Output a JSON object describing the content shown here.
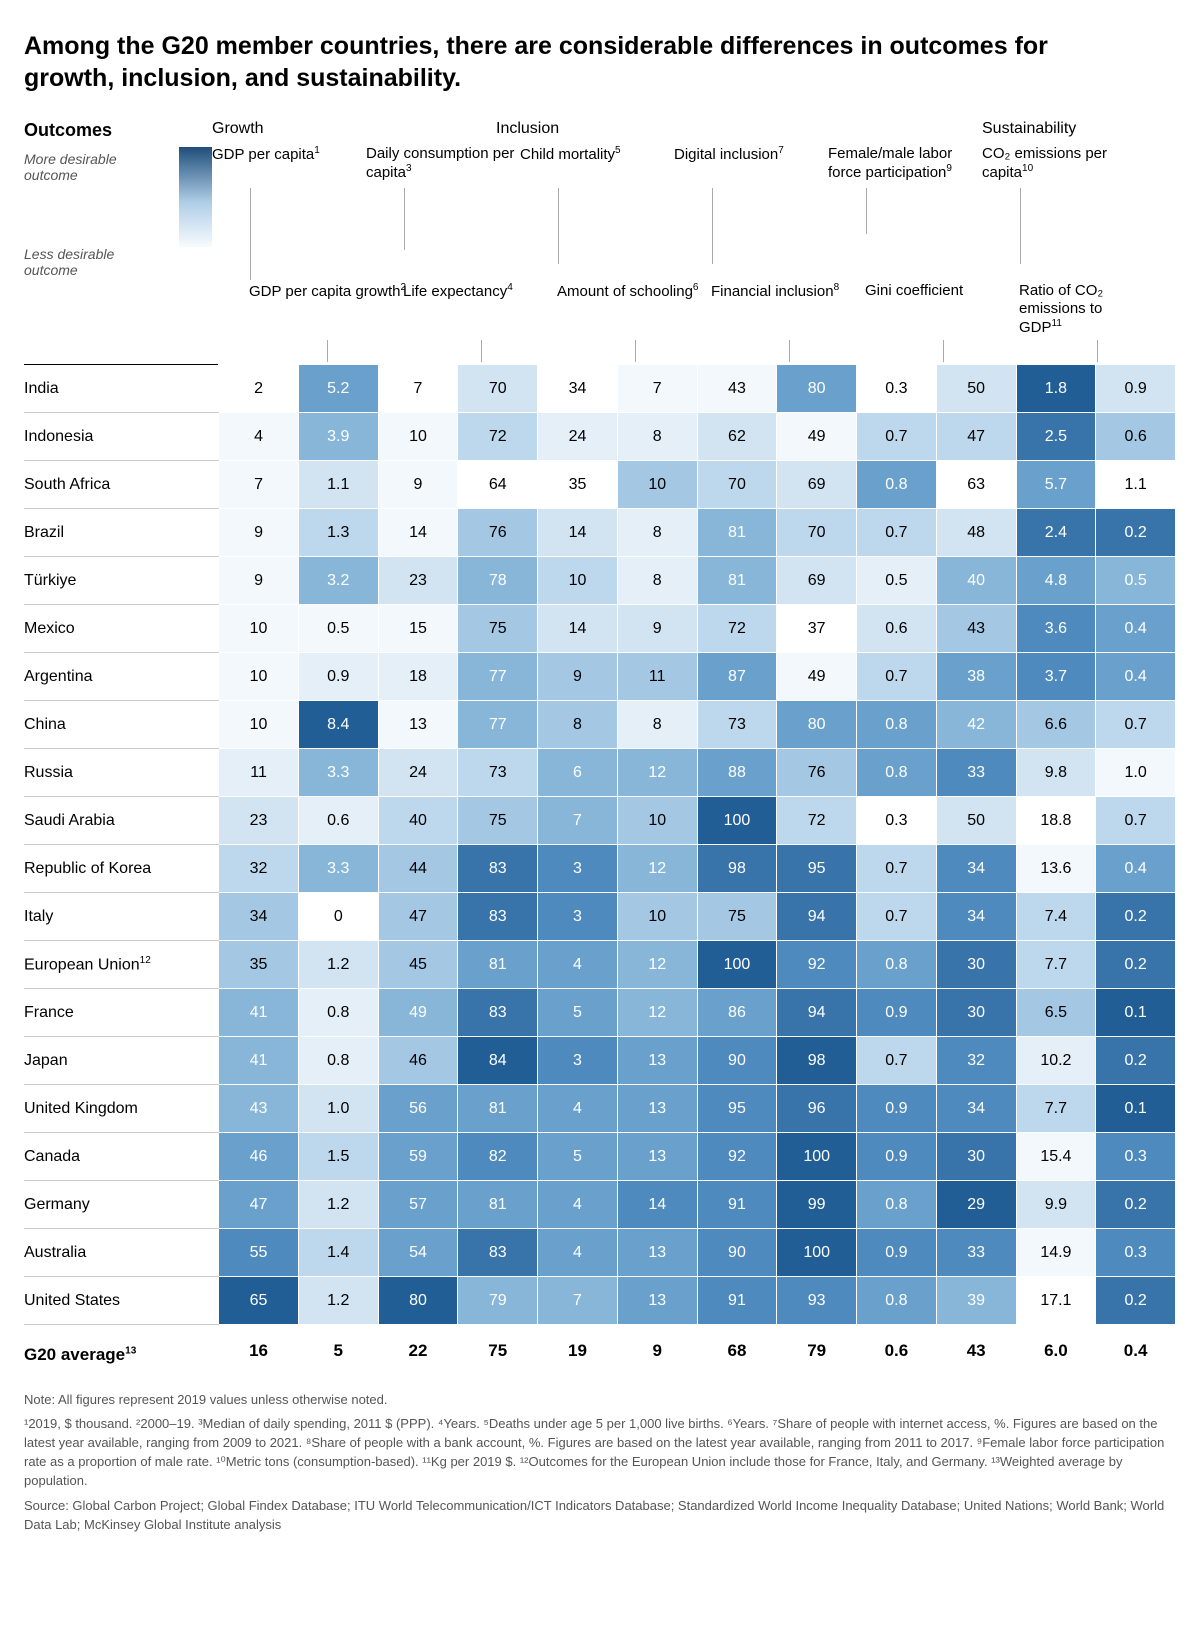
{
  "title": "Among the G20 member countries, there are considerable differences in outcomes for growth, inclusion, and sustainability.",
  "legend": {
    "top": "More desirable outcome",
    "bottom": "Less desirable outcome",
    "title": "Outcomes"
  },
  "groups": [
    "Growth",
    "Inclusion",
    "Sustainability"
  ],
  "metricsTop": [
    {
      "t": "GDP per capita",
      "s": "1"
    },
    {
      "t": "Daily consumption per capita",
      "s": "3"
    },
    {
      "t": "Child mortality",
      "s": "5"
    },
    {
      "t": "Digital inclusion",
      "s": "7"
    },
    {
      "t": "Female/male labor force participation",
      "s": "9"
    },
    {
      "t": "CO₂ emissions per capita",
      "s": "10"
    }
  ],
  "metricsBottom": [
    {
      "t": "GDP per capita growth",
      "s": "2"
    },
    {
      "t": "Life expectancy",
      "s": "4"
    },
    {
      "t": "Amount of schooling",
      "s": "6"
    },
    {
      "t": "Financial inclusion",
      "s": "8"
    },
    {
      "t": "Gini coefficient",
      "s": ""
    },
    {
      "t": "Ratio of CO₂ emissions to GDP",
      "s": "11"
    }
  ],
  "rows": [
    {
      "c": "India",
      "v": [
        "2",
        "5.2",
        "7",
        "70",
        "34",
        "7",
        "43",
        "80",
        "0.3",
        "50",
        "1.8",
        "0.9"
      ],
      "s": [
        0,
        7,
        0,
        3,
        0,
        1,
        1,
        7,
        0,
        3,
        10,
        3
      ]
    },
    {
      "c": "Indonesia",
      "v": [
        "4",
        "3.9",
        "10",
        "72",
        "24",
        "8",
        "62",
        "49",
        "0.7",
        "47",
        "2.5",
        "0.6"
      ],
      "s": [
        1,
        6,
        1,
        4,
        2,
        2,
        3,
        1,
        4,
        4,
        9,
        5
      ]
    },
    {
      "c": "South Africa",
      "v": [
        "7",
        "1.1",
        "9",
        "64",
        "35",
        "10",
        "70",
        "69",
        "0.8",
        "63",
        "5.7",
        "1.1"
      ],
      "s": [
        1,
        3,
        1,
        0,
        0,
        5,
        4,
        3,
        7,
        0,
        7,
        0
      ]
    },
    {
      "c": "Brazil",
      "v": [
        "9",
        "1.3",
        "14",
        "76",
        "14",
        "8",
        "81",
        "70",
        "0.7",
        "48",
        "2.4",
        "0.2"
      ],
      "s": [
        1,
        4,
        1,
        5,
        3,
        2,
        6,
        4,
        4,
        3,
        9,
        9
      ]
    },
    {
      "c": "Türkiye",
      "v": [
        "9",
        "3.2",
        "23",
        "78",
        "10",
        "8",
        "81",
        "69",
        "0.5",
        "40",
        "4.8",
        "0.5"
      ],
      "s": [
        1,
        6,
        3,
        6,
        4,
        2,
        6,
        3,
        2,
        6,
        7,
        6
      ]
    },
    {
      "c": "Mexico",
      "v": [
        "10",
        "0.5",
        "15",
        "75",
        "14",
        "9",
        "72",
        "37",
        "0.6",
        "43",
        "3.6",
        "0.4"
      ],
      "s": [
        1,
        1,
        1,
        5,
        3,
        3,
        4,
        0,
        3,
        5,
        8,
        7
      ]
    },
    {
      "c": "Argentina",
      "v": [
        "10",
        "0.9",
        "18",
        "77",
        "9",
        "11",
        "87",
        "49",
        "0.7",
        "38",
        "3.7",
        "0.4"
      ],
      "s": [
        1,
        2,
        2,
        6,
        5,
        5,
        7,
        1,
        4,
        7,
        8,
        7
      ]
    },
    {
      "c": "China",
      "v": [
        "10",
        "8.4",
        "13",
        "77",
        "8",
        "8",
        "73",
        "80",
        "0.8",
        "42",
        "6.6",
        "0.7"
      ],
      "s": [
        1,
        10,
        1,
        6,
        5,
        2,
        4,
        7,
        7,
        6,
        5,
        4
      ]
    },
    {
      "c": "Russia",
      "v": [
        "11",
        "3.3",
        "24",
        "73",
        "6",
        "12",
        "88",
        "76",
        "0.8",
        "33",
        "9.8",
        "1.0"
      ],
      "s": [
        2,
        6,
        3,
        4,
        6,
        6,
        7,
        5,
        7,
        8,
        3,
        1
      ]
    },
    {
      "c": "Saudi Arabia",
      "v": [
        "23",
        "0.6",
        "40",
        "75",
        "7",
        "10",
        "100",
        "72",
        "0.3",
        "50",
        "18.8",
        "0.7"
      ],
      "s": [
        3,
        2,
        4,
        5,
        6,
        5,
        10,
        4,
        0,
        3,
        0,
        4
      ]
    },
    {
      "c": "Republic of Korea",
      "v": [
        "32",
        "3.3",
        "44",
        "83",
        "3",
        "12",
        "98",
        "95",
        "0.7",
        "34",
        "13.6",
        "0.4"
      ],
      "s": [
        4,
        6,
        5,
        9,
        8,
        6,
        9,
        9,
        4,
        8,
        1,
        7
      ]
    },
    {
      "c": "Italy",
      "v": [
        "34",
        "0",
        "47",
        "83",
        "3",
        "10",
        "75",
        "94",
        "0.7",
        "34",
        "7.4",
        "0.2"
      ],
      "s": [
        5,
        0,
        5,
        9,
        8,
        5,
        5,
        9,
        4,
        8,
        4,
        9
      ]
    },
    {
      "c": "European Union",
      "sup": "12",
      "v": [
        "35",
        "1.2",
        "45",
        "81",
        "4",
        "12",
        "100",
        "92",
        "0.8",
        "30",
        "7.7",
        "0.2"
      ],
      "s": [
        5,
        3,
        5,
        7,
        7,
        6,
        10,
        8,
        7,
        9,
        4,
        9
      ]
    },
    {
      "c": "France",
      "v": [
        "41",
        "0.8",
        "49",
        "83",
        "5",
        "12",
        "86",
        "94",
        "0.9",
        "30",
        "6.5",
        "0.1"
      ],
      "s": [
        6,
        2,
        6,
        9,
        7,
        6,
        7,
        9,
        8,
        9,
        5,
        10
      ]
    },
    {
      "c": "Japan",
      "v": [
        "41",
        "0.8",
        "46",
        "84",
        "3",
        "13",
        "90",
        "98",
        "0.7",
        "32",
        "10.2",
        "0.2"
      ],
      "s": [
        6,
        2,
        5,
        10,
        8,
        7,
        8,
        10,
        4,
        8,
        2,
        9
      ]
    },
    {
      "c": "United Kingdom",
      "v": [
        "43",
        "1.0",
        "56",
        "81",
        "4",
        "13",
        "95",
        "96",
        "0.9",
        "34",
        "7.7",
        "0.1"
      ],
      "s": [
        6,
        3,
        7,
        7,
        7,
        7,
        8,
        9,
        8,
        8,
        4,
        10
      ]
    },
    {
      "c": "Canada",
      "v": [
        "46",
        "1.5",
        "59",
        "82",
        "5",
        "13",
        "92",
        "100",
        "0.9",
        "30",
        "15.4",
        "0.3"
      ],
      "s": [
        7,
        4,
        7,
        8,
        7,
        7,
        8,
        10,
        8,
        9,
        1,
        8
      ]
    },
    {
      "c": "Germany",
      "v": [
        "47",
        "1.2",
        "57",
        "81",
        "4",
        "14",
        "91",
        "99",
        "0.8",
        "29",
        "9.9",
        "0.2"
      ],
      "s": [
        7,
        3,
        7,
        7,
        7,
        8,
        8,
        10,
        7,
        10,
        3,
        9
      ]
    },
    {
      "c": "Australia",
      "v": [
        "55",
        "1.4",
        "54",
        "83",
        "4",
        "13",
        "90",
        "100",
        "0.9",
        "33",
        "14.9",
        "0.3"
      ],
      "s": [
        8,
        4,
        7,
        9,
        7,
        7,
        8,
        10,
        8,
        8,
        1,
        8
      ]
    },
    {
      "c": "United States",
      "v": [
        "65",
        "1.2",
        "80",
        "79",
        "7",
        "13",
        "91",
        "93",
        "0.8",
        "39",
        "17.1",
        "0.2"
      ],
      "s": [
        10,
        3,
        10,
        6,
        6,
        7,
        8,
        8,
        7,
        6,
        0,
        9
      ]
    }
  ],
  "avg": {
    "label": "G20 average",
    "sup": "13",
    "v": [
      "16",
      "5",
      "22",
      "75",
      "19",
      "9",
      "68",
      "79",
      "0.6",
      "43",
      "6.0",
      "0.4"
    ]
  },
  "notes": {
    "n1": "Note: All figures represent 2019 values unless otherwise noted.",
    "n2": "¹2019, $ thousand. ²2000–19. ³Median of daily spending, 2011 $ (PPP). ⁴Years. ⁵Deaths under age 5 per 1,000 live births. ⁶Years. ⁷Share of people with internet access, %. Figures are based on the latest year available, ranging from 2009 to 2021. ⁸Share of people with a bank account, %. Figures are based on the latest year available, ranging from 2011 to 2017. ⁹Female labor force participation rate as a proportion of male rate. ¹⁰Metric tons (consumption-based). ¹¹Kg per 2019 $. ¹²Outcomes for the European Union include those for France, Italy, and Germany. ¹³Weighted average by population.",
    "n3": "Source: Global Carbon Project; Global Findex Database; ITU World Telecommunication/ICT Indicators Database; Standardized World Income Inequality Database; United Nations; World Bank; World Data Lab; McKinsey Global Institute analysis"
  },
  "shades": [
    "#ffffff",
    "#f3f8fc",
    "#e5eff8",
    "#d2e3f1",
    "#bdd7ec",
    "#a4c8e3",
    "#87b6d9",
    "#6aa1cc",
    "#4e8abd",
    "#3873aa",
    "#225e96"
  ],
  "darkTextUntil": 5
}
